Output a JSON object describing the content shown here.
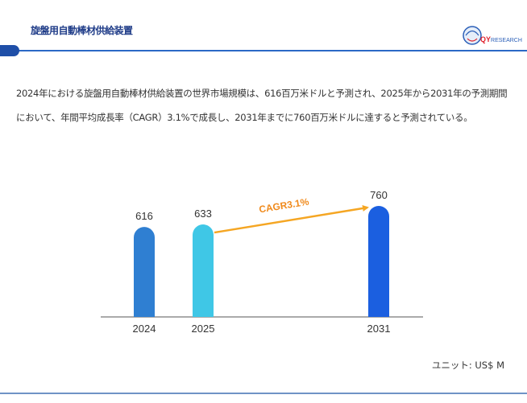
{
  "header": {
    "title": "旋盤用自動棒材供給装置",
    "logo_text_accent": "QY",
    "logo_text_rest": "RESEARCH",
    "accent_color": "#2b69c6"
  },
  "description": "2024年における旋盤用自動棒材供給装置の世界市場規模は、616百万米ドルと予測され、2025年から2031年の予測期間において、年間平均成長率（CAGR）3.1%で成長し、2031年までに760百万米ドルに達すると予測されている。",
  "unit_label": "ユニット: US$ M",
  "chart_data": {
    "type": "bar",
    "categories": [
      "2024",
      "2025",
      "2031"
    ],
    "values": [
      616,
      633,
      760
    ],
    "value_labels": [
      "616",
      "633",
      "760"
    ],
    "colors": [
      "#2f7fd2",
      "#3fc7e6",
      "#1b5fe0"
    ],
    "annotation": {
      "text": "CAGR3.1%",
      "from": "2025",
      "to": "2031",
      "color": "#f5a623",
      "text_color": "#f08a1c"
    },
    "ylim": [
      0,
      800
    ],
    "grid": false,
    "legend": "none"
  }
}
